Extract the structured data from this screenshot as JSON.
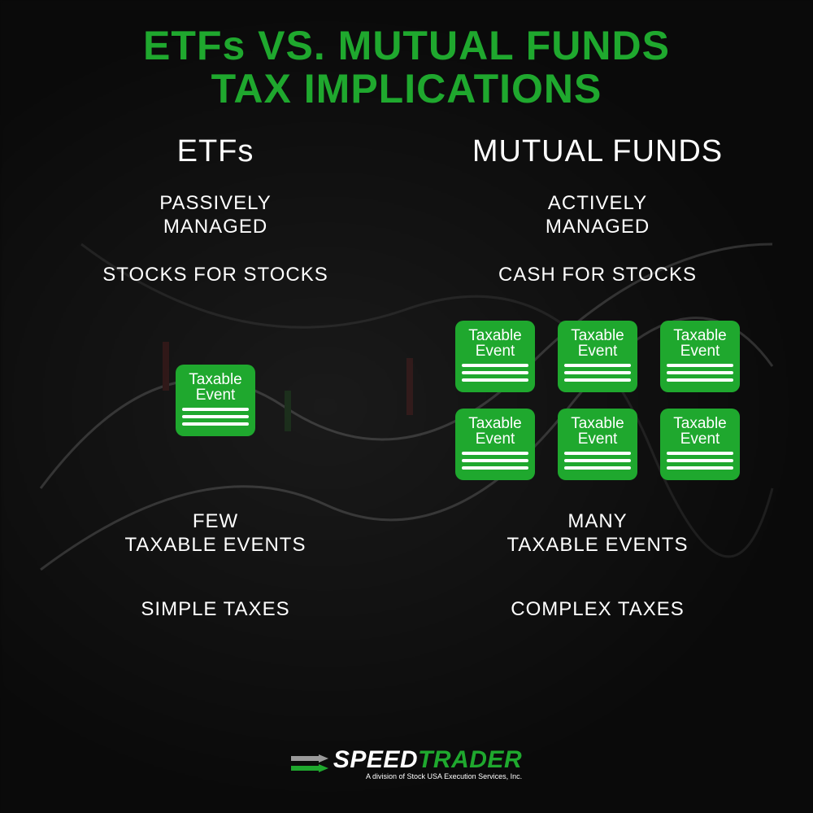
{
  "colors": {
    "green": "#1fa82e",
    "green_light": "#2eb83c",
    "white": "#ffffff",
    "grey": "#9a9a9a",
    "bg": "#0a0a0a"
  },
  "title": {
    "line1": "ETFs VS. MUTUAL FUNDS",
    "line2": "TAX IMPLICATIONS",
    "fontsize": 50
  },
  "columns": {
    "left": {
      "header": "ETFs",
      "managed": "PASSIVELY\nMANAGED",
      "exchange": "STOCKS FOR STOCKS",
      "events": "FEW\nTAXABLE EVENTS",
      "taxes": "SIMPLE TAXES",
      "card_count": 1
    },
    "right": {
      "header": "MUTUAL FUNDS",
      "managed": "ACTIVELY\nMANAGED",
      "exchange": "CASH FOR STOCKS",
      "events": "MANY\nTAXABLE EVENTS",
      "taxes": "COMPLEX TAXES",
      "card_count": 6
    }
  },
  "card_label": "Taxable\nEvent",
  "logo": {
    "text_speed": "SPEED",
    "text_trader": "TRADER",
    "subtitle": "A division of Stock USA Execution Services, Inc."
  }
}
